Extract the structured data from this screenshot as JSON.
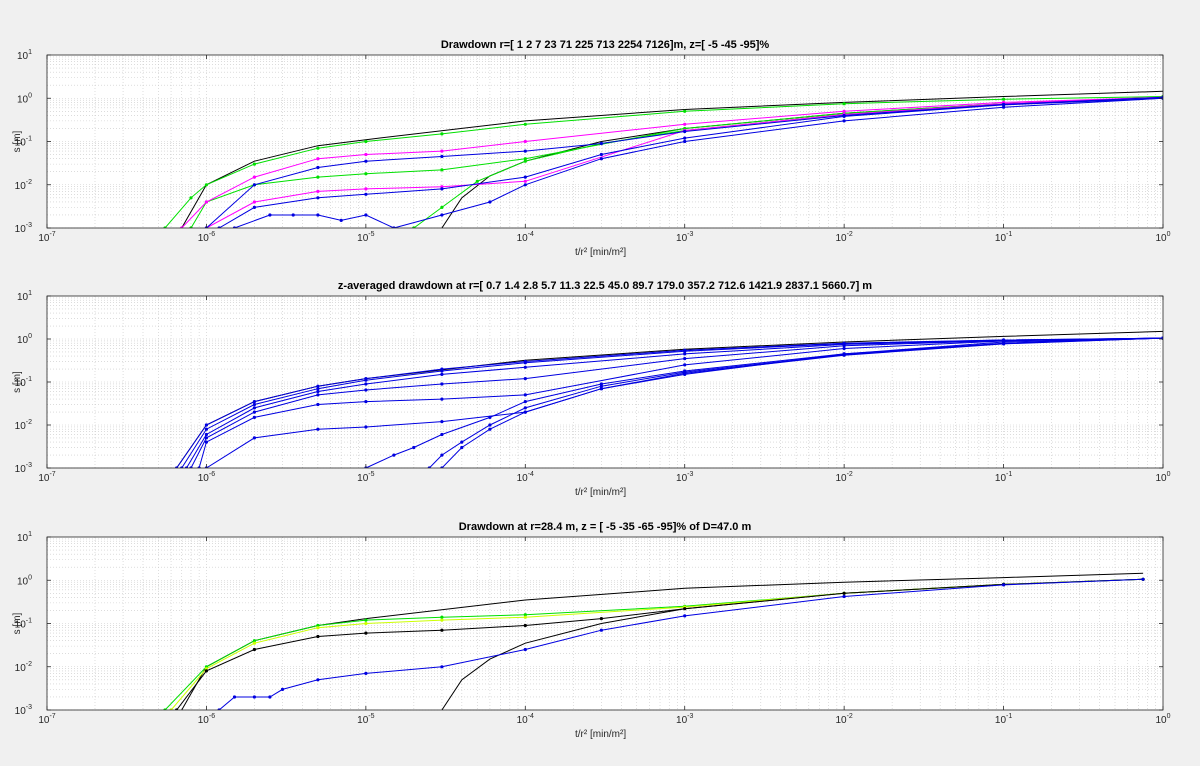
{
  "figure": {
    "background": "#f0f0f0",
    "axes_background": "#ffffff"
  },
  "chart_data": [
    {
      "type": "line",
      "title": "Drawdown r=[ 1  2  7  23  71  225  713  2254  7126]m, z=[ -5 -45 -95]%",
      "xlabel": "t/r² [min/m²]",
      "ylabel": "s [m]",
      "xscale": "log",
      "yscale": "log",
      "xlim": [
        1e-07,
        1
      ],
      "ylim": [
        0.001,
        10
      ],
      "grid": true,
      "xticks": [
        -7,
        -6,
        -5,
        -4,
        -3,
        -2,
        -1,
        0
      ],
      "yticks": [
        -3,
        -2,
        -1,
        0,
        1
      ],
      "series": [
        {
          "color": "#000000",
          "marker": false,
          "x": [
            7e-07,
            1e-06,
            2e-06,
            5e-06,
            1e-05,
            0.0001,
            0.001,
            0.01,
            0.1,
            1
          ],
          "y": [
            0.001,
            0.01,
            0.035,
            0.08,
            0.11,
            0.3,
            0.55,
            0.8,
            1.1,
            1.45
          ]
        },
        {
          "color": "#000000",
          "marker": false,
          "x": [
            3e-05,
            4e-05,
            6e-05,
            0.0001,
            0.0003,
            0.001,
            0.01,
            0.1,
            1
          ],
          "y": [
            0.001,
            0.005,
            0.016,
            0.035,
            0.1,
            0.2,
            0.45,
            0.75,
            1.05
          ]
        },
        {
          "color": "#00e000",
          "marker": true,
          "x": [
            5.5e-07,
            8e-07,
            1e-06,
            2e-06,
            5e-06,
            1e-05,
            3e-05,
            0.0001,
            0.001,
            0.01,
            0.1,
            1
          ],
          "y": [
            0.001,
            0.005,
            0.01,
            0.03,
            0.07,
            0.1,
            0.15,
            0.25,
            0.5,
            0.75,
            0.95,
            1.1
          ]
        },
        {
          "color": "#00e000",
          "marker": true,
          "x": [
            8e-07,
            1e-06,
            2e-06,
            5e-06,
            1e-05,
            3e-05,
            0.0001,
            0.001,
            0.01,
            0.1,
            1
          ],
          "y": [
            0.001,
            0.004,
            0.01,
            0.015,
            0.018,
            0.022,
            0.04,
            0.2,
            0.45,
            0.75,
            1.05
          ]
        },
        {
          "color": "#00e000",
          "marker": true,
          "x": [
            2e-05,
            3e-05,
            5e-05,
            0.0001,
            0.0003,
            0.001,
            0.01,
            0.1,
            1
          ],
          "y": [
            0.001,
            0.003,
            0.012,
            0.035,
            0.09,
            0.18,
            0.42,
            0.72,
            1.05
          ]
        },
        {
          "color": "#ff00ff",
          "marker": true,
          "x": [
            7e-07,
            1e-06,
            2e-06,
            5e-06,
            1e-05,
            3e-05,
            0.0001,
            0.001,
            0.01,
            0.1,
            1
          ],
          "y": [
            0.001,
            0.004,
            0.015,
            0.04,
            0.05,
            0.06,
            0.1,
            0.25,
            0.5,
            0.8,
            1.05
          ]
        },
        {
          "color": "#ff00ff",
          "marker": true,
          "x": [
            1e-06,
            2e-06,
            5e-06,
            1e-05,
            3e-05,
            0.0001,
            0.001,
            0.01,
            0.1,
            1
          ],
          "y": [
            0.001,
            0.004,
            0.007,
            0.008,
            0.009,
            0.012,
            0.18,
            0.42,
            0.75,
            1.05
          ]
        },
        {
          "color": "#0000e0",
          "marker": true,
          "x": [
            1e-06,
            2e-06,
            5e-06,
            1e-05,
            3e-05,
            0.0001,
            0.0003,
            0.001,
            0.01,
            0.1,
            1
          ],
          "y": [
            0.001,
            0.01,
            0.025,
            0.035,
            0.045,
            0.06,
            0.09,
            0.17,
            0.4,
            0.72,
            1.05
          ]
        },
        {
          "color": "#0000e0",
          "marker": true,
          "x": [
            1.2e-06,
            2e-06,
            5e-06,
            1e-05,
            3e-05,
            0.0001,
            0.0003,
            0.001,
            0.01,
            0.1,
            1
          ],
          "y": [
            0.001,
            0.003,
            0.005,
            0.006,
            0.008,
            0.015,
            0.05,
            0.12,
            0.38,
            0.7,
            1.0
          ]
        },
        {
          "color": "#0000e0",
          "marker": true,
          "x": [
            1.5e-06,
            2.5e-06,
            3.5e-06,
            5e-06,
            7e-06,
            1e-05,
            1.5e-05,
            3e-05,
            6e-05,
            0.0001,
            0.0003,
            0.001,
            0.01,
            0.1,
            1
          ],
          "y": [
            0.001,
            0.002,
            0.002,
            0.002,
            0.0015,
            0.002,
            0.001,
            0.002,
            0.004,
            0.01,
            0.04,
            0.1,
            0.3,
            0.62,
            1.0
          ]
        }
      ]
    },
    {
      "type": "line",
      "title": "z-averaged drawdown at r=[ 0.7  1.4  2.8  5.7  11.3  22.5  45.0  89.7  179.0  357.2  712.6  1421.9  2837.1  5660.7] m",
      "xlabel": "t/r² [min/m²]",
      "ylabel": "s [m]",
      "xscale": "log",
      "yscale": "log",
      "xlim": [
        1e-07,
        1
      ],
      "ylim": [
        0.001,
        10
      ],
      "grid": true,
      "xticks": [
        -7,
        -6,
        -5,
        -4,
        -3,
        -2,
        -1,
        0
      ],
      "yticks": [
        -3,
        -2,
        -1,
        0,
        1
      ],
      "series": [
        {
          "color": "#000000",
          "marker": false,
          "x": [
            6.5e-07,
            1e-06,
            2e-06,
            5e-06,
            1e-05,
            0.0001,
            0.001,
            0.01,
            0.1,
            1
          ],
          "y": [
            0.001,
            0.01,
            0.035,
            0.08,
            0.12,
            0.32,
            0.58,
            0.85,
            1.15,
            1.5
          ]
        },
        {
          "color": "#0000e0",
          "marker": true,
          "x": [
            6.5e-07,
            1e-06,
            2e-06,
            5e-06,
            1e-05,
            3e-05,
            0.0001,
            0.001,
            0.01,
            0.1,
            1
          ],
          "y": [
            0.001,
            0.01,
            0.035,
            0.08,
            0.12,
            0.2,
            0.3,
            0.55,
            0.8,
            0.95,
            1.05
          ]
        },
        {
          "color": "#0000e0",
          "marker": true,
          "x": [
            7e-07,
            1e-06,
            2e-06,
            5e-06,
            1e-05,
            3e-05,
            0.0001,
            0.001,
            0.01,
            0.1,
            1
          ],
          "y": [
            0.001,
            0.008,
            0.03,
            0.07,
            0.11,
            0.18,
            0.28,
            0.52,
            0.78,
            0.95,
            1.05
          ]
        },
        {
          "color": "#0000e0",
          "marker": true,
          "x": [
            7.5e-07,
            1e-06,
            2e-06,
            5e-06,
            1e-05,
            3e-05,
            0.0001,
            0.001,
            0.01,
            0.1,
            1
          ],
          "y": [
            0.001,
            0.006,
            0.025,
            0.06,
            0.09,
            0.15,
            0.22,
            0.45,
            0.75,
            0.93,
            1.05
          ]
        },
        {
          "color": "#0000e0",
          "marker": true,
          "x": [
            8e-07,
            1e-06,
            2e-06,
            5e-06,
            1e-05,
            3e-05,
            0.0001,
            0.001,
            0.01,
            0.1,
            1
          ],
          "y": [
            0.001,
            0.005,
            0.02,
            0.05,
            0.065,
            0.09,
            0.12,
            0.35,
            0.7,
            0.92,
            1.05
          ]
        },
        {
          "color": "#0000e0",
          "marker": true,
          "x": [
            9e-07,
            1e-06,
            2e-06,
            5e-06,
            1e-05,
            3e-05,
            0.0001,
            0.001,
            0.01,
            0.1,
            1
          ],
          "y": [
            0.001,
            0.004,
            0.015,
            0.03,
            0.035,
            0.04,
            0.05,
            0.25,
            0.6,
            0.9,
            1.05
          ]
        },
        {
          "color": "#0000e0",
          "marker": true,
          "x": [
            1e-06,
            2e-06,
            5e-06,
            1e-05,
            3e-05,
            0.0001,
            0.0003,
            0.001,
            0.01,
            0.1,
            1
          ],
          "y": [
            0.001,
            0.005,
            0.008,
            0.009,
            0.012,
            0.02,
            0.07,
            0.15,
            0.45,
            0.85,
            1.05
          ]
        },
        {
          "color": "#0000e0",
          "marker": true,
          "x": [
            1e-05,
            1.5e-05,
            2e-05,
            3e-05,
            6e-05,
            0.0001,
            0.0003,
            0.001,
            0.01,
            0.1,
            1
          ],
          "y": [
            0.001,
            0.002,
            0.003,
            0.006,
            0.015,
            0.035,
            0.09,
            0.18,
            0.45,
            0.8,
            1.05
          ]
        },
        {
          "color": "#0000e0",
          "marker": true,
          "x": [
            2.5e-05,
            3e-05,
            4e-05,
            6e-05,
            0.0001,
            0.0003,
            0.001,
            0.01,
            0.1,
            1
          ],
          "y": [
            0.001,
            0.002,
            0.004,
            0.01,
            0.025,
            0.08,
            0.17,
            0.43,
            0.78,
            1.05
          ]
        },
        {
          "color": "#0000e0",
          "marker": true,
          "x": [
            3e-05,
            4e-05,
            6e-05,
            0.0001,
            0.0003,
            0.001,
            0.01,
            0.1,
            1
          ],
          "y": [
            0.001,
            0.003,
            0.008,
            0.02,
            0.07,
            0.16,
            0.42,
            0.77,
            1.05
          ]
        }
      ]
    },
    {
      "type": "line",
      "title": "Drawdown at r=28.4 m, z = [ -5 -35 -65 -95]% of D=47.0 m",
      "xlabel": "t/r² [min/m²]",
      "ylabel": "s [m]",
      "xscale": "log",
      "yscale": "log",
      "xlim": [
        1e-07,
        1
      ],
      "ylim": [
        0.001,
        10
      ],
      "grid": true,
      "xticks": [
        -7,
        -6,
        -5,
        -4,
        -3,
        -2,
        -1,
        0
      ],
      "yticks": [
        -3,
        -2,
        -1,
        0,
        1
      ],
      "series": [
        {
          "color": "#000000",
          "marker": false,
          "x": [
            7e-07,
            1e-06,
            2e-06,
            5e-06,
            1e-05,
            0.0001,
            0.001,
            0.01,
            0.1,
            0.75
          ],
          "y": [
            0.001,
            0.01,
            0.04,
            0.09,
            0.13,
            0.35,
            0.65,
            0.9,
            1.15,
            1.45
          ]
        },
        {
          "color": "#000000",
          "marker": false,
          "x": [
            3e-05,
            4e-05,
            6e-05,
            0.0001,
            0.0003,
            0.001,
            0.01,
            0.1,
            0.75
          ],
          "y": [
            0.001,
            0.005,
            0.015,
            0.035,
            0.1,
            0.22,
            0.5,
            0.8,
            1.05
          ]
        },
        {
          "color": "#00e000",
          "marker": true,
          "x": [
            5.5e-07,
            1e-06,
            2e-06,
            5e-06,
            1e-05,
            3e-05,
            0.0001,
            0.001,
            0.01,
            0.1,
            0.75
          ],
          "y": [
            0.001,
            0.01,
            0.04,
            0.09,
            0.12,
            0.14,
            0.16,
            0.25,
            0.5,
            0.8,
            1.05
          ]
        },
        {
          "color": "#ccff00",
          "marker": true,
          "x": [
            6e-07,
            1e-06,
            2e-06,
            5e-06,
            1e-05,
            3e-05,
            0.0001,
            0.001,
            0.01,
            0.1,
            0.75
          ],
          "y": [
            0.001,
            0.009,
            0.035,
            0.08,
            0.1,
            0.12,
            0.14,
            0.24,
            0.5,
            0.8,
            1.05
          ]
        },
        {
          "color": "#000000",
          "marker": true,
          "x": [
            6.5e-07,
            1e-06,
            2e-06,
            5e-06,
            1e-05,
            3e-05,
            0.0001,
            0.0003,
            0.001,
            0.01,
            0.1,
            0.75
          ],
          "y": [
            0.001,
            0.008,
            0.025,
            0.05,
            0.06,
            0.07,
            0.09,
            0.13,
            0.22,
            0.5,
            0.8,
            1.05
          ]
        },
        {
          "color": "#0000e0",
          "marker": true,
          "x": [
            1.2e-06,
            1.5e-06,
            2e-06,
            2.5e-06,
            3e-06,
            5e-06,
            1e-05,
            3e-05,
            0.0001,
            0.0003,
            0.001,
            0.01,
            0.1,
            0.75
          ],
          "y": [
            0.001,
            0.002,
            0.002,
            0.002,
            0.003,
            0.005,
            0.007,
            0.01,
            0.025,
            0.07,
            0.15,
            0.42,
            0.78,
            1.05
          ]
        }
      ]
    }
  ]
}
